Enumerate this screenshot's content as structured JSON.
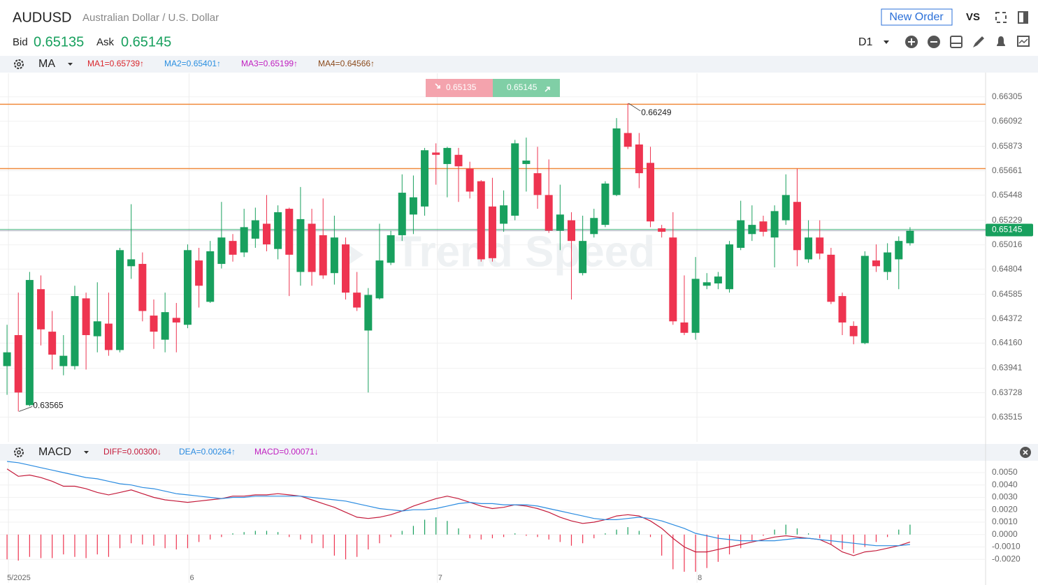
{
  "header": {
    "symbol": "AUDUSD",
    "name": "Australian Dollar / U.S. Dollar",
    "bid_label": "Bid",
    "bid": 0.65135,
    "ask_label": "Ask",
    "ask": 0.65145,
    "new_order": "New Order",
    "vs": "VS",
    "timeframe": "D1"
  },
  "indicator_bar": {
    "name": "MA",
    "items": [
      {
        "label": "MA1=0.65739↑",
        "color": "#d9262c"
      },
      {
        "label": "MA2=0.65401↑",
        "color": "#2a8fe0"
      },
      {
        "label": "MA3=0.65199↑",
        "color": "#c020c0"
      },
      {
        "label": "MA4=0.64566↑",
        "color": "#8b4a1c"
      }
    ]
  },
  "macd_bar": {
    "name": "MACD"
  },
  "watermark": "Trend Speed",
  "chart_data": [
    {
      "type": "candlestick",
      "categories": [
        "5/2025",
        null,
        null,
        null,
        null,
        null,
        null,
        null,
        null,
        null,
        null,
        null,
        null,
        null,
        null,
        null,
        "6",
        null,
        null,
        null,
        null,
        null,
        null,
        null,
        null,
        null,
        null,
        null,
        null,
        null,
        null,
        null,
        null,
        null,
        null,
        null,
        null,
        null,
        "7",
        null,
        null,
        null,
        null,
        null,
        null,
        null,
        null,
        null,
        null,
        null,
        null,
        null,
        null,
        null,
        null,
        null,
        null,
        null,
        null,
        null,
        null,
        "8",
        null,
        null,
        null,
        null,
        null,
        null,
        null,
        null,
        null,
        null,
        null,
        null,
        null,
        null,
        null,
        null,
        null,
        null,
        null
      ],
      "open": [
        0.6396,
        0.6423,
        0.6362,
        0.6463,
        0.6426,
        0.6396,
        0.6396,
        0.6455,
        0.6422,
        0.6433,
        0.641,
        0.6483,
        0.6485,
        0.644,
        0.6419,
        0.6438,
        0.6432,
        0.6488,
        0.6452,
        0.6485,
        0.6505,
        0.6495,
        0.6507,
        0.652,
        0.6498,
        0.6533,
        0.6478,
        0.652,
        0.651,
        0.6477,
        0.6502,
        0.646,
        0.6427,
        0.6455,
        0.6486,
        0.651,
        0.6528,
        0.6535,
        0.6582,
        0.6572,
        0.658,
        0.6568,
        0.6557,
        0.6535,
        0.652,
        0.6527,
        0.6572,
        0.6564,
        0.6545,
        0.6514,
        0.6523,
        0.6477,
        0.6511,
        0.6519,
        0.6545,
        0.6599,
        0.6589,
        0.6573,
        0.6516,
        0.6508,
        0.6434,
        0.6425,
        0.6466,
        0.6468,
        0.6463,
        0.6499,
        0.6511,
        0.6522,
        0.6508,
        0.6523,
        0.6539,
        0.6489,
        0.6508,
        0.6493,
        0.6457,
        0.6431,
        0.6416,
        0.6488,
        0.6478,
        0.6489,
        0.6503
      ],
      "high": [
        0.6432,
        0.646,
        0.6478,
        0.6475,
        0.6444,
        0.6423,
        0.6466,
        0.646,
        0.6469,
        0.646,
        0.6499,
        0.6537,
        0.6495,
        0.6454,
        0.646,
        0.6451,
        0.6502,
        0.6499,
        0.6505,
        0.6539,
        0.6511,
        0.6533,
        0.6534,
        0.6545,
        0.6536,
        0.6534,
        0.6552,
        0.6533,
        0.6542,
        0.6527,
        0.6508,
        0.6478,
        0.6464,
        0.652,
        0.6514,
        0.6563,
        0.6562,
        0.6586,
        0.659,
        0.6587,
        0.6586,
        0.6574,
        0.6558,
        0.656,
        0.6549,
        0.6593,
        0.6595,
        0.6587,
        0.6576,
        0.6554,
        0.653,
        0.6527,
        0.6533,
        0.6557,
        0.6612,
        0.66249,
        0.6599,
        0.6587,
        0.6519,
        0.653,
        0.6475,
        0.6491,
        0.6477,
        0.6478,
        0.6505,
        0.654,
        0.6536,
        0.6527,
        0.6536,
        0.6563,
        0.6568,
        0.6523,
        0.6523,
        0.6499,
        0.646,
        0.6435,
        0.6496,
        0.6502,
        0.6503,
        0.6509,
        0.6517
      ],
      "low": [
        0.6371,
        0.63565,
        0.6361,
        0.6414,
        0.6393,
        0.6388,
        0.6393,
        0.6393,
        0.6408,
        0.6405,
        0.6408,
        0.6472,
        0.6435,
        0.6411,
        0.6408,
        0.6408,
        0.6429,
        0.6447,
        0.6451,
        0.6481,
        0.6487,
        0.6491,
        0.6499,
        0.6496,
        0.6489,
        0.6457,
        0.6466,
        0.6466,
        0.6472,
        0.6467,
        0.6454,
        0.6444,
        0.6373,
        0.6454,
        0.6484,
        0.6505,
        0.6511,
        0.6527,
        0.6554,
        0.6543,
        0.6539,
        0.6542,
        0.6487,
        0.6487,
        0.6513,
        0.6523,
        0.6548,
        0.6533,
        0.6512,
        0.6497,
        0.6454,
        0.6475,
        0.6508,
        0.6517,
        0.6544,
        0.6585,
        0.6551,
        0.6517,
        0.6508,
        0.6432,
        0.6423,
        0.6419,
        0.6463,
        0.6463,
        0.646,
        0.6497,
        0.6505,
        0.6509,
        0.6482,
        0.6519,
        0.6483,
        0.6486,
        0.6489,
        0.645,
        0.6423,
        0.6415,
        0.6415,
        0.6478,
        0.6471,
        0.6463,
        0.6501
      ],
      "close": [
        0.6408,
        0.6373,
        0.6471,
        0.6428,
        0.6406,
        0.6405,
        0.6457,
        0.6423,
        0.6435,
        0.641,
        0.6497,
        0.6489,
        0.6444,
        0.6426,
        0.6443,
        0.6434,
        0.6497,
        0.6466,
        0.6496,
        0.6508,
        0.6493,
        0.6517,
        0.6523,
        0.6502,
        0.653,
        0.6493,
        0.6524,
        0.6478,
        0.6475,
        0.6508,
        0.646,
        0.6447,
        0.6458,
        0.6488,
        0.651,
        0.6547,
        0.6543,
        0.6584,
        0.658,
        0.6586,
        0.657,
        0.6548,
        0.6489,
        0.649,
        0.6536,
        0.659,
        0.6575,
        0.6545,
        0.6514,
        0.6528,
        0.6505,
        0.6505,
        0.6525,
        0.6555,
        0.6603,
        0.6587,
        0.6564,
        0.6522,
        0.6513,
        0.6435,
        0.6425,
        0.6472,
        0.6469,
        0.6474,
        0.6502,
        0.6523,
        0.6519,
        0.6513,
        0.6531,
        0.6545,
        0.6497,
        0.6508,
        0.6494,
        0.6452,
        0.6434,
        0.6422,
        0.6492,
        0.6483,
        0.6495,
        0.6505,
        0.6514
      ],
      "up_color": "#18a05e",
      "down_color": "#ee3450",
      "ylim": [
        0.633,
        0.6651
      ],
      "yticks": [
        0.66305,
        0.66092,
        0.65873,
        0.65661,
        0.65448,
        0.65229,
        0.65016,
        0.64804,
        0.64585,
        0.64372,
        {
          "value": 0.6416,
          "label": "0.64160"
        },
        0.63941,
        0.63728,
        0.63515
      ],
      "grid": true,
      "levels": [
        0.6624,
        0.6568
      ],
      "level_color": "#f08a3c",
      "last_price": 0.65145,
      "last_price_color": "#18a05e"
    },
    {
      "type": "macd",
      "ylim": [
        -0.0039,
        0.0059
      ],
      "yticks": [
        {
          "value": 0.005,
          "label": "0.0050"
        },
        {
          "value": 0.004,
          "label": "0.0040"
        },
        {
          "value": 0.003,
          "label": "0.0030"
        },
        {
          "value": 0.002,
          "label": "0.0020"
        },
        {
          "value": 0.001,
          "label": "0.0010"
        },
        {
          "value": 0,
          "label": "0.0000"
        },
        {
          "value": -0.001,
          "label": "-0.0010"
        },
        {
          "value": -0.002,
          "label": "-0.0020"
        }
      ],
      "grid": true,
      "series": [
        {
          "name": "DIFF=0.00300↓",
          "color": "#c41a3a",
          "values": [
            0.0053,
            0.0047,
            0.0048,
            0.0046,
            0.0043,
            0.0039,
            0.0039,
            0.0037,
            0.0034,
            0.0032,
            0.0034,
            0.0036,
            0.0033,
            0.003,
            0.0028,
            0.0027,
            0.0026,
            0.0027,
            0.0028,
            0.0029,
            0.0031,
            0.0031,
            0.0032,
            0.0032,
            0.0033,
            0.0032,
            0.0031,
            0.0028,
            0.0025,
            0.0022,
            0.0018,
            0.0014,
            0.0013,
            0.0014,
            0.0016,
            0.0019,
            0.0023,
            0.0026,
            0.0029,
            0.0031,
            0.0029,
            0.0026,
            0.0023,
            0.0021,
            0.0022,
            0.0024,
            0.0023,
            0.0021,
            0.0018,
            0.0014,
            0.0011,
            0.0009,
            0.001,
            0.0012,
            0.0015,
            0.0016,
            0.0015,
            0.0011,
            0.0005,
            -0.0003,
            -0.001,
            -0.0014,
            -0.0014,
            -0.0012,
            -0.001,
            -0.0008,
            -0.0006,
            -0.0004,
            -0.0002,
            -0.0001,
            -0.0002,
            -0.0003,
            -0.0004,
            -0.0008,
            -0.0014,
            -0.0017,
            -0.0014,
            -0.0013,
            -0.0011,
            -0.0009,
            -0.0006
          ]
        },
        {
          "name": "DEA=0.00264↑",
          "color": "#2a8be0",
          "values": [
            0.0059,
            0.0058,
            0.0056,
            0.0054,
            0.0052,
            0.005,
            0.0048,
            0.0046,
            0.0045,
            0.0043,
            0.0041,
            0.004,
            0.0038,
            0.0037,
            0.0035,
            0.0033,
            0.0032,
            0.0031,
            0.003,
            0.0029,
            0.003,
            0.003,
            0.0031,
            0.0031,
            0.0031,
            0.0031,
            0.0031,
            0.003,
            0.0029,
            0.0028,
            0.0027,
            0.0025,
            0.0023,
            0.0021,
            0.002,
            0.0019,
            0.002,
            0.002,
            0.0021,
            0.0023,
            0.0025,
            0.0026,
            0.0025,
            0.0025,
            0.0024,
            0.0024,
            0.0024,
            0.0023,
            0.0021,
            0.0019,
            0.0017,
            0.0015,
            0.0013,
            0.0012,
            0.0012,
            0.0013,
            0.0014,
            0.0013,
            0.0011,
            0.0008,
            0.0005,
            0.0001,
            -0.0001,
            -0.0003,
            -0.0004,
            -0.0005,
            -0.0005,
            -0.0005,
            -0.0005,
            -0.0004,
            -0.0003,
            -0.0003,
            -0.0004,
            -0.0005,
            -0.0006,
            -0.0007,
            -0.0008,
            -0.0009,
            -0.0009,
            -0.0009,
            -0.0008
          ]
        }
      ],
      "histogram": {
        "name": "MACD=0.00071↓",
        "color": "#c020c0",
        "up_color": "#18a05e",
        "down_color": "#ee3450",
        "values": [
          -0.002,
          -0.0021,
          -0.0018,
          -0.0019,
          -0.0019,
          -0.0016,
          -0.0018,
          -0.0019,
          -0.0016,
          -0.0018,
          -0.0011,
          -0.0007,
          -0.0008,
          -0.0009,
          -0.0011,
          -0.0012,
          -0.0011,
          -0.0006,
          -0.0004,
          -0.0002,
          0.0001,
          0.0002,
          0.0003,
          0.0003,
          0.0002,
          -0.0002,
          -0.0004,
          -0.0007,
          -0.0011,
          -0.0017,
          -0.002,
          -0.0018,
          -0.0012,
          -0.0007,
          -0.0002,
          0.0003,
          0.0007,
          0.0012,
          0.0014,
          0.0011,
          0.0005,
          -0.0003,
          -0.0004,
          -0.0003,
          -0.0002,
          0.0001,
          -0.0001,
          -0.0002,
          -0.0004,
          -0.0006,
          -0.0009,
          -0.0007,
          -0.0003,
          0.0001,
          0.0004,
          0.0006,
          0.0003,
          -0.0002,
          -0.0017,
          -0.0028,
          -0.003,
          -0.003,
          -0.0027,
          -0.0022,
          -0.0016,
          -0.0011,
          -0.0005,
          -0.0001,
          0.0004,
          0.0008,
          0.0005,
          0.0001,
          -0.0003,
          -0.0008,
          -0.0012,
          -0.0015,
          -0.001,
          -0.0006,
          -0.0002,
          0.0004,
          0.0008
        ]
      }
    }
  ]
}
